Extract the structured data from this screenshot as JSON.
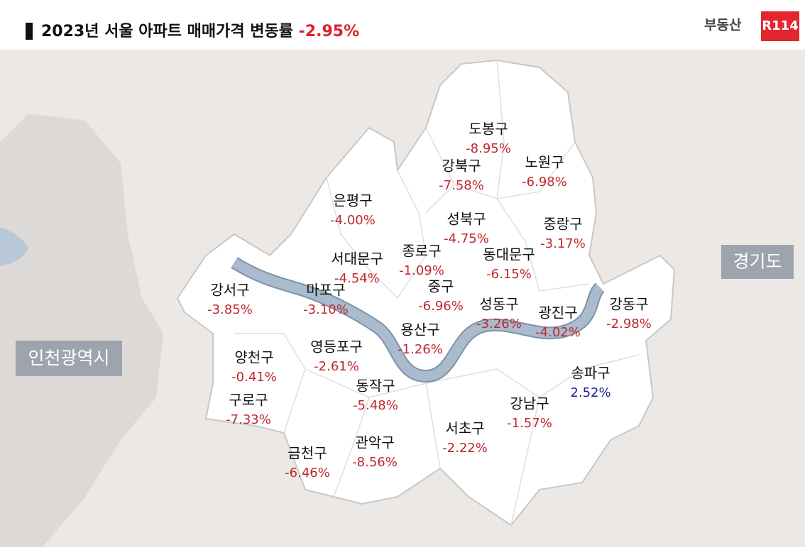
{
  "header": {
    "title": "2023년 서울 아파트 매매가격 변동률",
    "total": "-2.95%",
    "logo": "부동산",
    "logo_badge": "R114"
  },
  "regions": [
    {
      "label": "경기도"
    },
    {
      "label": "인천광역시"
    }
  ],
  "districts": [
    {
      "name": "도봉구",
      "change": "-8.95%",
      "color": "#c0282d"
    },
    {
      "name": "강북구",
      "change": "-7.58%",
      "color": "#c0282d"
    },
    {
      "name": "노원구",
      "change": "-6.98%",
      "color": "#c0282d"
    },
    {
      "name": "은평구",
      "change": "-4.00%",
      "color": "#c0282d"
    },
    {
      "name": "성북구",
      "change": "-4.75%",
      "color": "#c0282d"
    },
    {
      "name": "중랑구",
      "change": "-3.17%",
      "color": "#c0282d"
    },
    {
      "name": "종로구",
      "change": "-1.09%",
      "color": "#c0282d"
    },
    {
      "name": "서대문구",
      "change": "-4.54%",
      "color": "#c0282d"
    },
    {
      "name": "동대문구",
      "change": "-6.15%",
      "color": "#c0282d"
    },
    {
      "name": "강서구",
      "change": "-3.85%",
      "color": "#c0282d"
    },
    {
      "name": "마포구",
      "change": "-3.10%",
      "color": "#c0282d"
    },
    {
      "name": "중구",
      "change": "-6.96%",
      "color": "#c0282d"
    },
    {
      "name": "성동구",
      "change": "-3.26%",
      "color": "#c0282d"
    },
    {
      "name": "광진구",
      "change": "-4.02%",
      "color": "#c0282d"
    },
    {
      "name": "강동구",
      "change": "-2.98%",
      "color": "#c0282d"
    },
    {
      "name": "용산구",
      "change": "-1.26%",
      "color": "#c0282d"
    },
    {
      "name": "양천구",
      "change": "-0.41%",
      "color": "#c0282d"
    },
    {
      "name": "영등포구",
      "change": "-2.61%",
      "color": "#c0282d"
    },
    {
      "name": "송파구",
      "change": "2.52%",
      "color": "#1c1c8c"
    },
    {
      "name": "동작구",
      "change": "-5.48%",
      "color": "#c0282d"
    },
    {
      "name": "구로구",
      "change": "-7.33%",
      "color": "#c0282d"
    },
    {
      "name": "강남구",
      "change": "-1.57%",
      "color": "#c0282d"
    },
    {
      "name": "서초구",
      "change": "-2.22%",
      "color": "#c0282d"
    },
    {
      "name": "관악구",
      "change": "-8.56%",
      "color": "#c0282d"
    },
    {
      "name": "금천구",
      "change": "-6.46%",
      "color": "#c0282d"
    }
  ]
}
